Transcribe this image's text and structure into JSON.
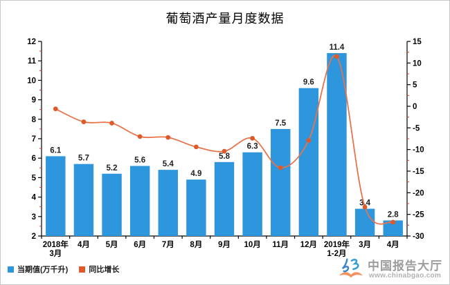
{
  "chart_data": {
    "type": "bar",
    "title": "葡萄酒产量月度数据",
    "categories": [
      [
        "2018年",
        "3月"
      ],
      [
        "4月"
      ],
      [
        "5月"
      ],
      [
        "6月"
      ],
      [
        "7月"
      ],
      [
        "8月"
      ],
      [
        "9月"
      ],
      [
        "10月"
      ],
      [
        "11月"
      ],
      [
        "12月"
      ],
      [
        "2019年",
        "1-2月"
      ],
      [
        "3月"
      ],
      [
        "4月"
      ]
    ],
    "series": [
      {
        "name": "当期值(万千升)",
        "type": "bar",
        "axis": "left",
        "color": "#2e96dc",
        "values": [
          6.1,
          5.7,
          5.2,
          5.6,
          5.4,
          4.9,
          5.8,
          6.3,
          7.5,
          9.6,
          11.4,
          3.4,
          2.8
        ]
      },
      {
        "name": "同比增长",
        "type": "line",
        "axis": "right",
        "color": "#e8734b",
        "marker_color": "#df5a28",
        "values": [
          -0.6,
          -3.6,
          -3.9,
          -7.0,
          -7.2,
          -9.4,
          -10.4,
          -7.4,
          -14.2,
          -7.9,
          11.5,
          -23.3,
          -26.8
        ]
      }
    ],
    "left_axis": {
      "min": 2,
      "max": 12,
      "step": 1
    },
    "right_axis": {
      "min": -30,
      "max": 15,
      "step": 5
    },
    "axis_color": "#000000",
    "minor_tick_color": "#e0392b",
    "data_label_color": "#1f1f1f",
    "grid": false,
    "legend_position": "bottom-left"
  },
  "logo": {
    "name": "中国报告大厅",
    "url": "www.chinabgao.com"
  }
}
